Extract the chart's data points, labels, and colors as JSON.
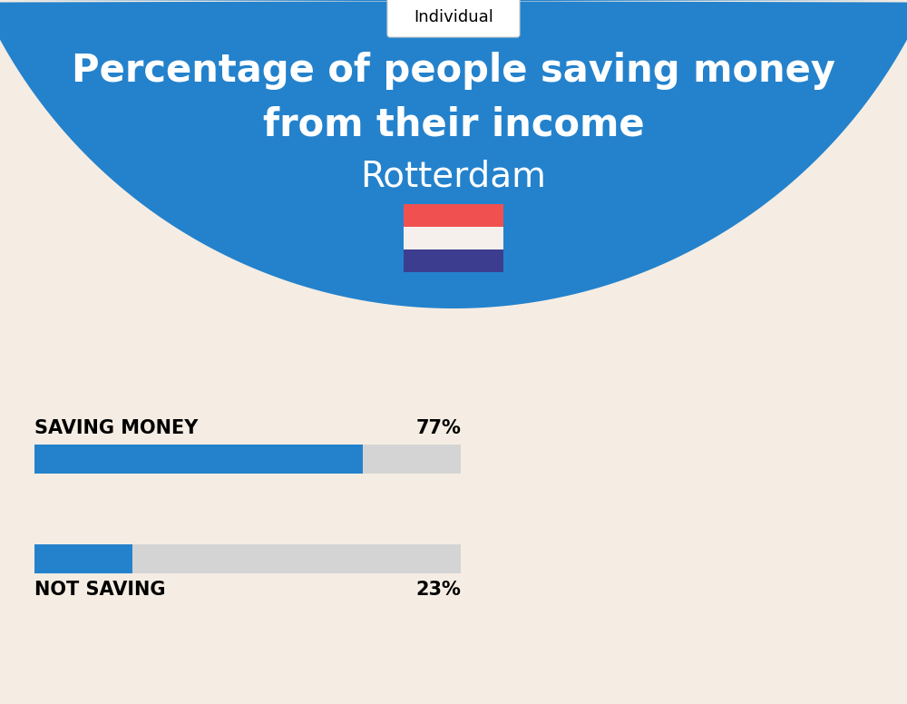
{
  "title_line1": "Percentage of people saving money",
  "title_line2": "from their income",
  "city": "Rotterdam",
  "tab_label": "Individual",
  "background_color": "#F5EDE3",
  "header_color": "#2482CC",
  "bar_color": "#2482CC",
  "bar_bg_color": "#D4D4D4",
  "categories": [
    "SAVING MONEY",
    "NOT SAVING"
  ],
  "values": [
    77,
    23
  ],
  "label_color": "#000000",
  "title_color": "#FFFFFF",
  "city_color": "#FFFFFF",
  "flag_red": "#F05050",
  "flag_white": "#F5F0EC",
  "flag_blue": "#3D3D8F",
  "figsize": [
    10.0,
    7.76
  ]
}
